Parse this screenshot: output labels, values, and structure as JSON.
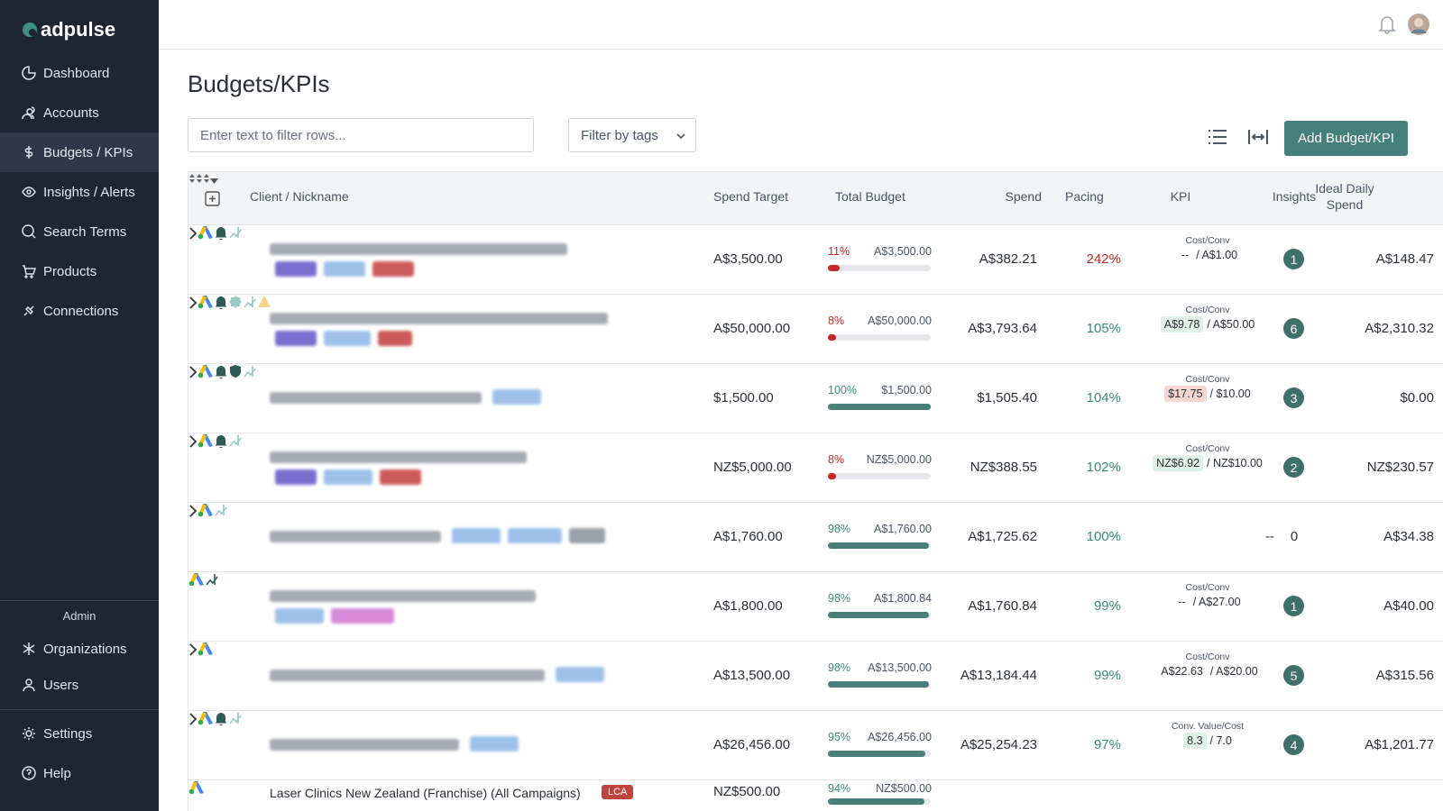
{
  "brand": "adpulse",
  "nav": [
    "Dashboard",
    "Accounts",
    "Budgets / KPIs",
    "Insights / Alerts",
    "Search Terms",
    "Products",
    "Connections"
  ],
  "admin": {
    "title": "Admin",
    "items": [
      "Organizations",
      "Users"
    ]
  },
  "footer_nav": [
    "Settings",
    "Help"
  ],
  "page": {
    "title": "Budgets/KPIs",
    "filter_placeholder": "Enter text to filter rows...",
    "tags_filter": "Filter by tags",
    "add_button": "Add Budget/KPI"
  },
  "table": {
    "headers": [
      "Client / Nickname",
      "Spend Target",
      "Total Budget",
      "Spend",
      "Pacing",
      "KPI",
      "Insights",
      "Ideal Daily Spend"
    ],
    "rows": [
      {
        "expandable": true,
        "spend_target": "A$3,500.00",
        "budget_pct": "11%",
        "progress": 11,
        "total_budget": "A$3,500.00",
        "spend": "A$382.21",
        "pacing": "242%",
        "pacing_color": "#c62828",
        "kpi_label": "Cost/Conv",
        "kpi_actual": "--",
        "kpi_actual_bg": "none",
        "kpi_target": "/ A$1.00",
        "insights": "1",
        "ideal": "A$148.47"
      },
      {
        "expandable": true,
        "spend_target": "A$50,000.00",
        "budget_pct": "8%",
        "progress": 8,
        "total_budget": "A$50,000.00",
        "spend": "A$3,793.64",
        "pacing": "105%",
        "pacing_color": "#3a8a78",
        "kpi_label": "Cost/Conv",
        "kpi_actual": "A$9.78",
        "kpi_actual_bg": "#dff1e6",
        "kpi_target": "/ A$50.00",
        "insights": "6",
        "ideal": "A$2,310.32"
      },
      {
        "expandable": true,
        "spend_target": "$1,500.00",
        "budget_pct": "100%",
        "progress": 100,
        "total_budget": "$1,500.00",
        "spend": "$1,505.40",
        "pacing": "104%",
        "pacing_color": "#3a8a78",
        "kpi_label": "Cost/Conv",
        "kpi_actual": "$17.75",
        "kpi_actual_bg": "#f6d6d3",
        "kpi_target": "/ $10.00",
        "insights": "3",
        "ideal": "$0.00"
      },
      {
        "expandable": true,
        "spend_target": "NZ$5,000.00",
        "budget_pct": "8%",
        "progress": 8,
        "total_budget": "NZ$5,000.00",
        "spend": "NZ$388.55",
        "pacing": "102%",
        "pacing_color": "#3a8a78",
        "kpi_label": "Cost/Conv",
        "kpi_actual": "NZ$6.92",
        "kpi_actual_bg": "#dff1e6",
        "kpi_target": "/ NZ$10.00",
        "insights": "2",
        "ideal": "NZ$230.57"
      },
      {
        "expandable": true,
        "spend_target": "A$1,760.00",
        "budget_pct": "98%",
        "progress": 98,
        "total_budget": "A$1,760.00",
        "spend": "A$1,725.62",
        "pacing": "100%",
        "pacing_color": "#3a8a78",
        "kpi_actual": "--",
        "kpi_actual_bg": "none",
        "insights": "0",
        "ideal": "A$34.38"
      },
      {
        "expandable": false,
        "spend_target": "A$1,800.00",
        "budget_pct": "98%",
        "progress": 98,
        "total_budget": "A$1,800.84",
        "spend": "A$1,760.84",
        "pacing": "99%",
        "pacing_color": "#3a8a78",
        "kpi_label": "Cost/Conv",
        "kpi_actual": "--",
        "kpi_actual_bg": "none",
        "kpi_target": "/ A$27.00",
        "insights": "1",
        "ideal": "A$40.00"
      },
      {
        "expandable": true,
        "spend_target": "A$13,500.00",
        "budget_pct": "98%",
        "progress": 98,
        "total_budget": "A$13,500.00",
        "spend": "A$13,184.44",
        "pacing": "99%",
        "pacing_color": "#3a8a78",
        "kpi_label": "Cost/Conv",
        "kpi_actual": "A$22.63",
        "kpi_actual_bg": "none",
        "kpi_target": "/ A$20.00",
        "insights": "5",
        "ideal": "A$315.56"
      },
      {
        "expandable": true,
        "spend_target": "A$26,456.00",
        "budget_pct": "95%",
        "progress": 95,
        "total_budget": "A$26,456.00",
        "spend": "A$25,254.23",
        "pacing": "97%",
        "pacing_color": "#3a8a78",
        "kpi_label": "Conv. Value/Cost",
        "kpi_actual": "8.3",
        "kpi_actual_bg": "#dff1e6",
        "kpi_target": "/ 7.0",
        "insights": "4",
        "ideal": "A$1,201.77"
      },
      {
        "expandable": false,
        "name": "Laser Clinics New Zealand (Franchise) (All Campaigns)",
        "tag": "LCA",
        "spend_target": "NZ$500.00",
        "budget_pct": "94%",
        "progress": 94,
        "total_budget": "NZ$500.00"
      }
    ]
  }
}
